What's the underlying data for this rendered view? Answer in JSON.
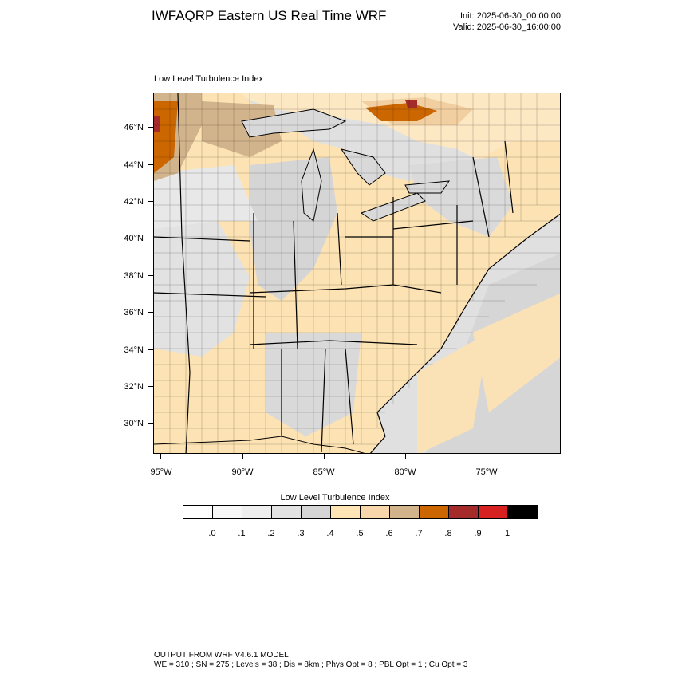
{
  "header": {
    "title": "IWFAQRP Eastern US Real Time WRF",
    "init": "Init: 2025-06-30_00:00:00",
    "valid": "Valid: 2025-06-30_16:00:00"
  },
  "map": {
    "subtitle": "Low Level Turbulence Index",
    "lat_labels": [
      "46°N",
      "44°N",
      "42°N",
      "40°N",
      "38°N",
      "36°N",
      "34°N",
      "32°N",
      "30°N"
    ],
    "lon_labels": [
      "95°W",
      "90°W",
      "85°W",
      "80°W",
      "75°W"
    ],
    "colors": {
      "water": "#e4e4e4",
      "land_low": "#d9d9d9",
      "land_mid": "#fde3b4",
      "land_high": "#d2b48c",
      "peak": "#cc5f0a",
      "max": "#a52a2a",
      "boundary": "#000000"
    }
  },
  "colorbar": {
    "title": "Low Level Turbulence Index",
    "colors": [
      "#ffffff",
      "#f7f7f7",
      "#eeeeee",
      "#e2e2e2",
      "#d5d5d5",
      "#ffe4b5",
      "#f6d6aa",
      "#d2b48c",
      "#cc6600",
      "#a52a2a",
      "#d72020",
      "#000000"
    ],
    "labels": [
      ".0",
      ".1",
      ".2",
      ".3",
      ".4",
      ".5",
      ".6",
      ".7",
      ".8",
      ".9",
      "1"
    ]
  },
  "footer": {
    "line1": "OUTPUT FROM WRF V4.6.1 MODEL",
    "line2": "WE = 310 ; SN = 275 ; Levels = 38 ; Dis = 8km ; Phys Opt = 8 ; PBL Opt = 1 ; Cu Opt = 3"
  }
}
